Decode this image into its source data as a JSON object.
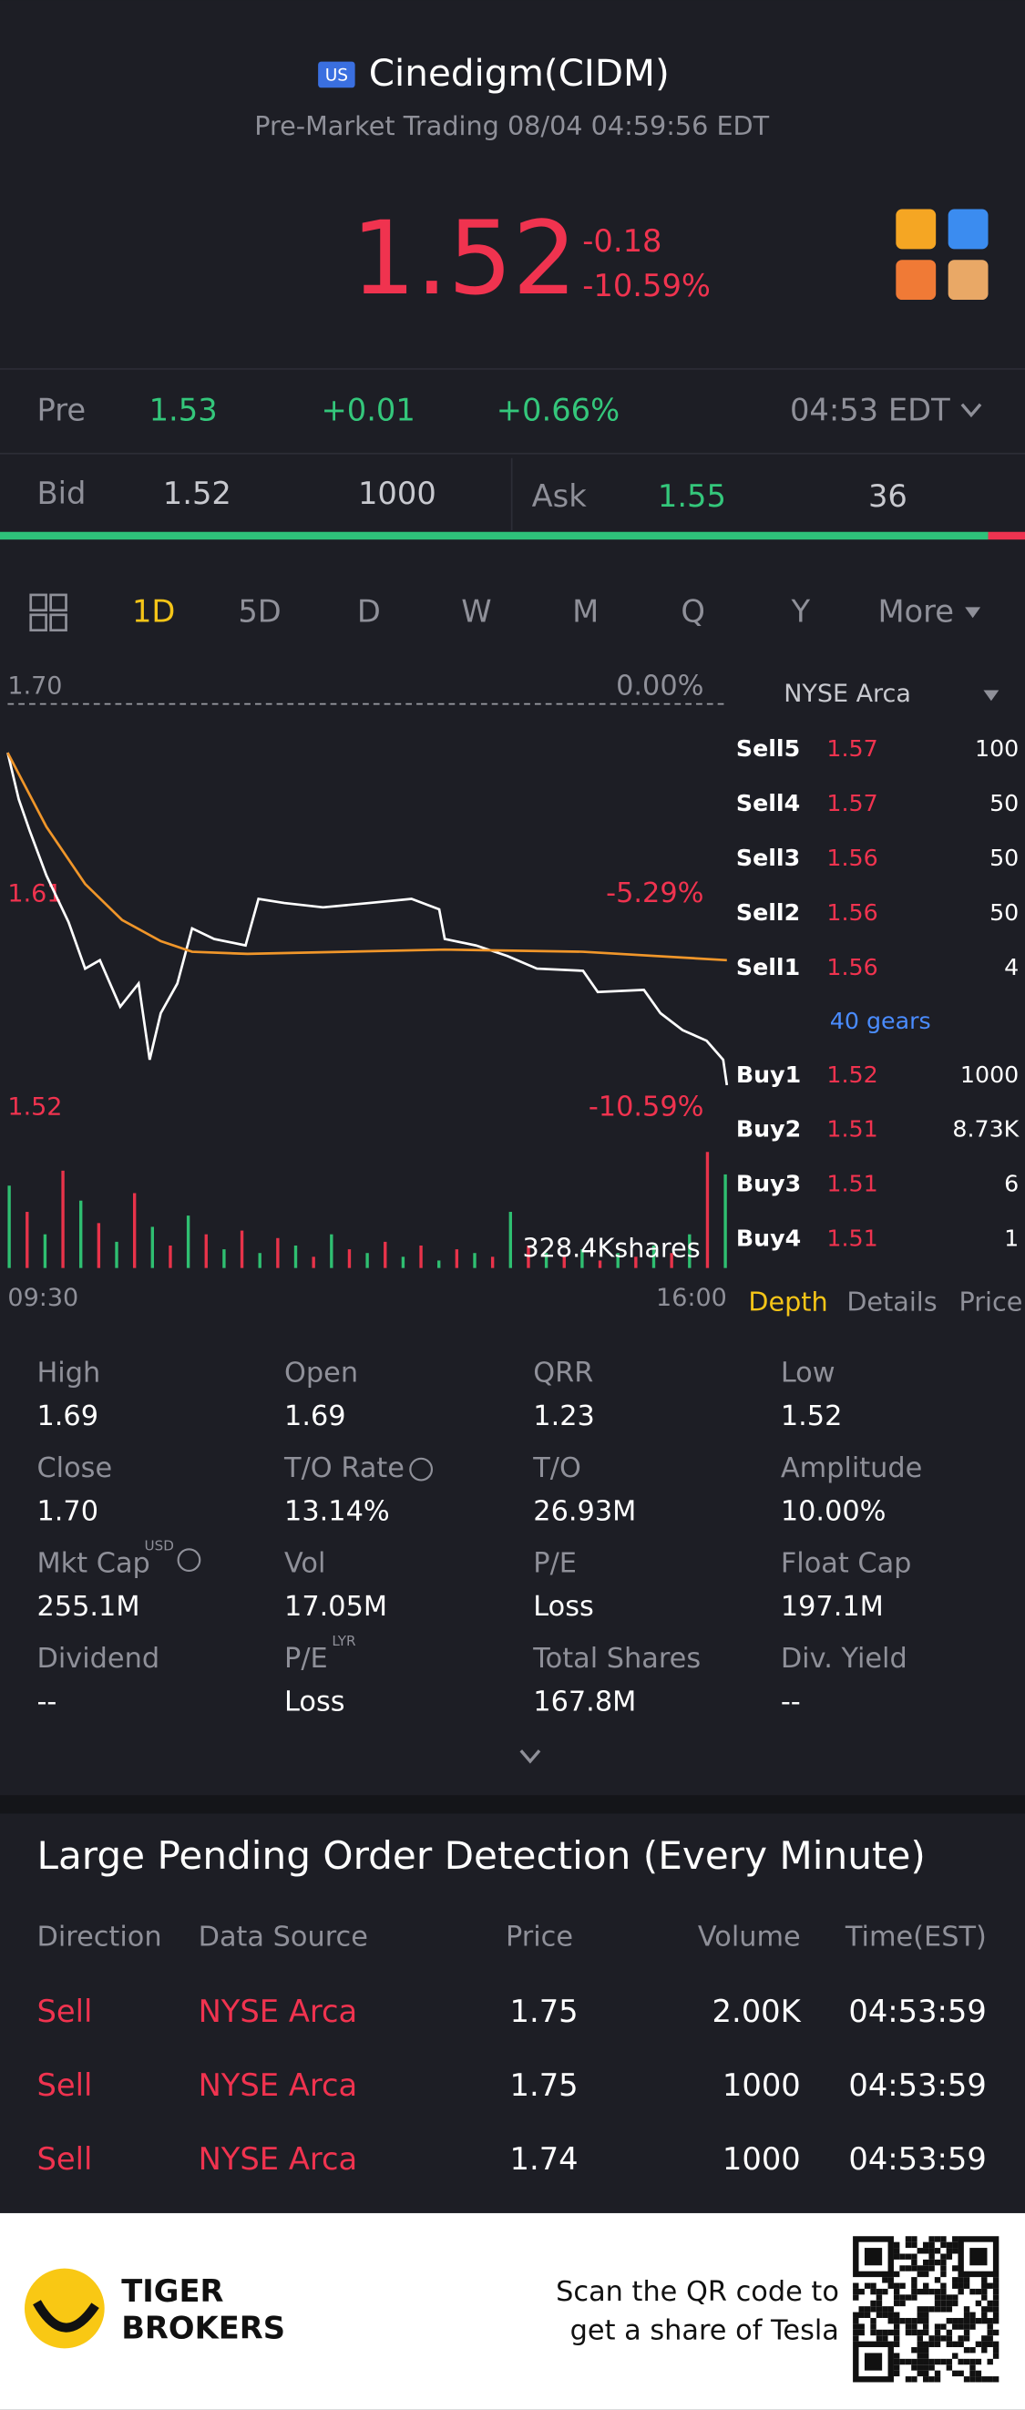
{
  "header": {
    "market_badge": "US",
    "title": "Cinedigm(CIDM)",
    "subtitle": "Pre-Market Trading 08/04 04:59:56 EDT"
  },
  "quote": {
    "price": "1.52",
    "change": "-0.18",
    "change_pct": "-10.59%"
  },
  "pre": {
    "label": "Pre",
    "price": "1.53",
    "change": "+0.01",
    "change_pct": "+0.66%",
    "time": "04:53 EDT"
  },
  "bid_ask": {
    "bid_label": "Bid",
    "bid": "1.52",
    "bid_size": "1000",
    "ask_label": "Ask",
    "ask": "1.55",
    "ask_size": "36"
  },
  "tabs": [
    "1D",
    "5D",
    "D",
    "W",
    "M",
    "Q",
    "Y",
    "More"
  ],
  "chart_data": {
    "type": "line",
    "ylim": [
      1.52,
      1.7
    ],
    "xlim": [
      0,
      390
    ],
    "yticks": [
      {
        "value": 1.7,
        "label": "1.70"
      },
      {
        "value": 1.61,
        "label": "1.61"
      },
      {
        "value": 1.52,
        "label": "1.52"
      }
    ],
    "y2lim": [
      -10.59,
      0
    ],
    "y2ticks": [
      {
        "value": 0,
        "label": "0.00%"
      },
      {
        "value": -5.29,
        "label": "-5.29%"
      },
      {
        "value": -10.59,
        "label": "-10.59%"
      }
    ],
    "xticks": [
      {
        "value": 0,
        "label": "09:30"
      },
      {
        "value": 390,
        "label": "16:00"
      }
    ],
    "series": [
      {
        "color": "#ffffff",
        "x": [
          0,
          6,
          12,
          21,
          33,
          42,
          50,
          61,
          71,
          77,
          83,
          92,
          100,
          112,
          129,
          136,
          150,
          171,
          196,
          219,
          234,
          237,
          254,
          271,
          287,
          312,
          320,
          345,
          354,
          366,
          379,
          388,
          390
        ],
        "values": [
          1.677,
          1.655,
          1.64,
          1.619,
          1.597,
          1.575,
          1.579,
          1.557,
          1.568,
          1.532,
          1.554,
          1.568,
          1.594,
          1.589,
          1.586,
          1.608,
          1.606,
          1.604,
          1.606,
          1.608,
          1.603,
          1.589,
          1.586,
          1.581,
          1.575,
          1.574,
          1.564,
          1.565,
          1.554,
          1.546,
          1.541,
          1.532,
          1.52
        ]
      },
      {
        "color": "#f0962a",
        "x": [
          0,
          21,
          42,
          62,
          83,
          100,
          130,
          237,
          312,
          390
        ],
        "values": [
          1.677,
          1.642,
          1.615,
          1.598,
          1.588,
          1.583,
          1.582,
          1.584,
          1.583,
          1.579
        ]
      }
    ],
    "volume": {
      "label": "328.4Kshares",
      "ylim": [
        0,
        328.4
      ],
      "up_color": "#2fbf71",
      "down_color": "#e8334a",
      "values": [
        220,
        150,
        90,
        260,
        180,
        120,
        70,
        200,
        110,
        60,
        140,
        90,
        50,
        100,
        40,
        80,
        60,
        30,
        90,
        50,
        40,
        70,
        30,
        60,
        20,
        50,
        40,
        30,
        150,
        60,
        40,
        30,
        50,
        20,
        40,
        30,
        60,
        40,
        90,
        310,
        250
      ]
    }
  },
  "depth": {
    "exchange": "NYSE Arca",
    "sells": [
      {
        "label": "Sell5",
        "price": "1.57",
        "size": "100"
      },
      {
        "label": "Sell4",
        "price": "1.57",
        "size": "50"
      },
      {
        "label": "Sell3",
        "price": "1.56",
        "size": "50"
      },
      {
        "label": "Sell2",
        "price": "1.56",
        "size": "50"
      },
      {
        "label": "Sell1",
        "price": "1.56",
        "size": "4"
      }
    ],
    "gears": "40 gears",
    "buys": [
      {
        "label": "Buy1",
        "price": "1.52",
        "size": "1000"
      },
      {
        "label": "Buy2",
        "price": "1.51",
        "size": "8.73K"
      },
      {
        "label": "Buy3",
        "price": "1.51",
        "size": "6"
      },
      {
        "label": "Buy4",
        "price": "1.51",
        "size": "1"
      }
    ],
    "tabs": [
      "Depth",
      "Details",
      "Price"
    ]
  },
  "stats": [
    {
      "label": "High",
      "value": "1.69"
    },
    {
      "label": "Open",
      "value": "1.69"
    },
    {
      "label": "QRR",
      "value": "1.23"
    },
    {
      "label": "Low",
      "value": "1.52"
    },
    {
      "label": "Close",
      "value": "1.70"
    },
    {
      "label": "T/O Rate",
      "value": "13.14%"
    },
    {
      "label": "T/O",
      "value": "26.93M"
    },
    {
      "label": "Amplitude",
      "value": "10.00%"
    },
    {
      "label": "Mkt Cap",
      "value": "255.1M",
      "sup": "USD"
    },
    {
      "label": "Vol",
      "value": "17.05M"
    },
    {
      "label": "P/E",
      "value": "Loss"
    },
    {
      "label": "Float Cap",
      "value": "197.1M"
    },
    {
      "label": "Dividend",
      "value": "--"
    },
    {
      "label": "P/E",
      "value": "Loss",
      "sup": "LYR"
    },
    {
      "label": "Total Shares",
      "value": "167.8M"
    },
    {
      "label": "Div. Yield",
      "value": "--"
    }
  ],
  "orders": {
    "title": "Large Pending Order Detection (Every Minute)",
    "headers": [
      "Direction",
      "Data Source",
      "Price",
      "Volume",
      "Time(EST)"
    ],
    "rows": [
      [
        "Sell",
        "NYSE Arca",
        "1.75",
        "2.00K",
        "04:53:59"
      ],
      [
        "Sell",
        "NYSE Arca",
        "1.75",
        "1000",
        "04:53:59"
      ],
      [
        "Sell",
        "NYSE Arca",
        "1.74",
        "1000",
        "04:53:59"
      ]
    ]
  },
  "footer": {
    "brand": [
      "TIGER",
      "BROKERS"
    ],
    "promo": [
      "Scan the QR code to",
      "get a share of Tesla"
    ]
  }
}
